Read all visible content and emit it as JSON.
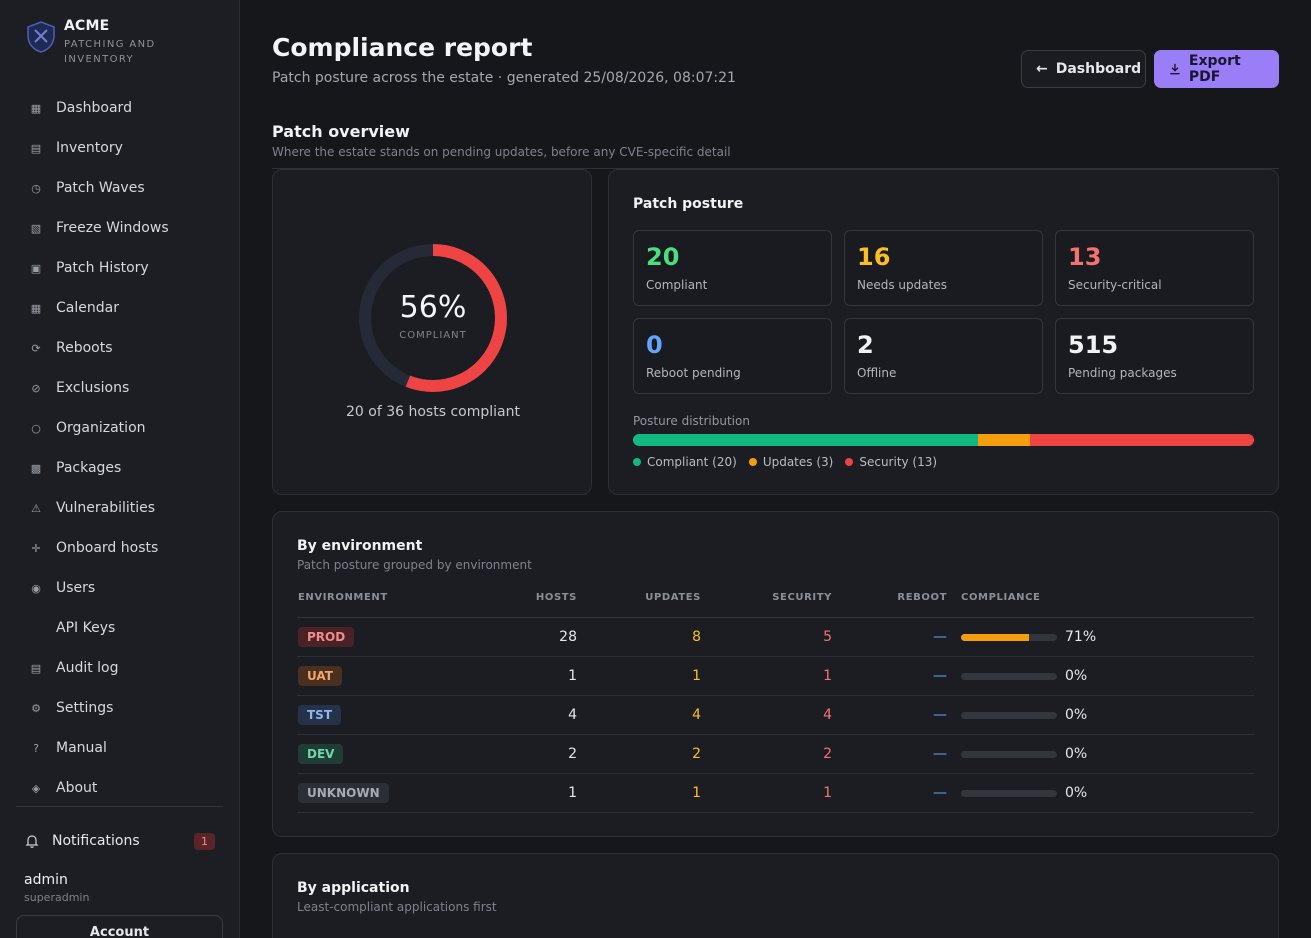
{
  "brand": {
    "name": "ACME",
    "subtitle": "PATCHING AND INVENTORY"
  },
  "nav": [
    {
      "label": "Dashboard",
      "icon": "grid-icon",
      "glyph": "▦"
    },
    {
      "label": "Inventory",
      "icon": "list-icon",
      "glyph": "▤"
    },
    {
      "label": "Patch Waves",
      "icon": "clock-icon",
      "glyph": "◷"
    },
    {
      "label": "Freeze Windows",
      "icon": "freeze-icon",
      "glyph": "▧"
    },
    {
      "label": "Patch History",
      "icon": "history-icon",
      "glyph": "▣"
    },
    {
      "label": "Calendar",
      "icon": "calendar-icon",
      "glyph": "▦"
    },
    {
      "label": "Reboots",
      "icon": "reboot-icon",
      "glyph": "⟳"
    },
    {
      "label": "Exclusions",
      "icon": "exclusion-icon",
      "glyph": "⊘"
    },
    {
      "label": "Organization",
      "icon": "org-icon",
      "glyph": "○"
    },
    {
      "label": "Packages",
      "icon": "package-icon",
      "glyph": "▩"
    },
    {
      "label": "Vulnerabilities",
      "icon": "warning-icon",
      "glyph": "⚠"
    },
    {
      "label": "Onboard hosts",
      "icon": "plus-icon",
      "glyph": "✛"
    },
    {
      "label": "Users",
      "icon": "user-icon",
      "glyph": "◉"
    },
    {
      "label": "API Keys",
      "icon": "key-icon",
      "glyph": ""
    },
    {
      "label": "Audit log",
      "icon": "log-icon",
      "glyph": "▤"
    },
    {
      "label": "Settings",
      "icon": "gear-icon",
      "glyph": "⚙"
    },
    {
      "label": "Manual",
      "icon": "help-icon",
      "glyph": "?"
    },
    {
      "label": "About",
      "icon": "about-icon",
      "glyph": "◈"
    }
  ],
  "notifications": {
    "label": "Notifications",
    "count": "1"
  },
  "user": {
    "name": "admin",
    "role": "superadmin",
    "account_label": "Account"
  },
  "header": {
    "title": "Compliance report",
    "subtitle": "Patch posture across the estate · generated 25/08/2026, 08:07:21",
    "dashboard_label": "Dashboard",
    "export_label": "Export PDF"
  },
  "overview": {
    "title": "Patch overview",
    "subtitle": "Where the estate stands on pending updates, before any CVE-specific detail"
  },
  "donut": {
    "percent": 56,
    "percent_text": "56%",
    "label": "COMPLIANT",
    "caption": "20 of 36 hosts compliant",
    "color": "#ef4444",
    "track_color": "#252a36"
  },
  "posture": {
    "title": "Patch posture",
    "stats": [
      {
        "value": "20",
        "label": "Compliant",
        "color": "#4ade80"
      },
      {
        "value": "16",
        "label": "Needs updates",
        "color": "#fbbf24"
      },
      {
        "value": "13",
        "label": "Security-critical",
        "color": "#f87171"
      },
      {
        "value": "0",
        "label": "Reboot pending",
        "color": "#60a5fa"
      },
      {
        "value": "2",
        "label": "Offline",
        "color": "#f1f2f4"
      },
      {
        "value": "515",
        "label": "Pending packages",
        "color": "#f1f2f4"
      }
    ],
    "distribution_label": "Posture distribution",
    "distribution": [
      {
        "name": "Compliant",
        "count": 20,
        "legend": "Compliant (20)",
        "color": "#10b981"
      },
      {
        "name": "Updates",
        "count": 3,
        "legend": "Updates (3)",
        "color": "#f59e0b"
      },
      {
        "name": "Security",
        "count": 13,
        "legend": "Security (13)",
        "color": "#ef4444"
      }
    ]
  },
  "by_environment": {
    "title": "By environment",
    "subtitle": "Patch posture grouped by environment",
    "columns": [
      "ENVIRONMENT",
      "HOSTS",
      "UPDATES",
      "SECURITY",
      "REBOOT",
      "COMPLIANCE"
    ],
    "rows": [
      {
        "env": "PROD",
        "tag_bg": "#4a2226",
        "tag_fg": "#f38b8b",
        "hosts": "28",
        "updates": "8",
        "security": "5",
        "reboot": "—",
        "compliance": 71,
        "compliance_text": "71%"
      },
      {
        "env": "UAT",
        "tag_bg": "#4a3020",
        "tag_fg": "#f3a569",
        "hosts": "1",
        "updates": "1",
        "security": "1",
        "reboot": "—",
        "compliance": 0,
        "compliance_text": "0%"
      },
      {
        "env": "TST",
        "tag_bg": "#24324a",
        "tag_fg": "#8fb4f0",
        "hosts": "4",
        "updates": "4",
        "security": "4",
        "reboot": "—",
        "compliance": 0,
        "compliance_text": "0%"
      },
      {
        "env": "DEV",
        "tag_bg": "#1f3d33",
        "tag_fg": "#6fd6a8",
        "hosts": "2",
        "updates": "2",
        "security": "2",
        "reboot": "—",
        "compliance": 0,
        "compliance_text": "0%"
      },
      {
        "env": "UNKNOWN",
        "tag_bg": "#2c2e35",
        "tag_fg": "#a8abb3",
        "hosts": "1",
        "updates": "1",
        "security": "1",
        "reboot": "—",
        "compliance": 0,
        "compliance_text": "0%"
      }
    ]
  },
  "by_application": {
    "title": "By application",
    "subtitle": "Least-compliant applications first"
  }
}
